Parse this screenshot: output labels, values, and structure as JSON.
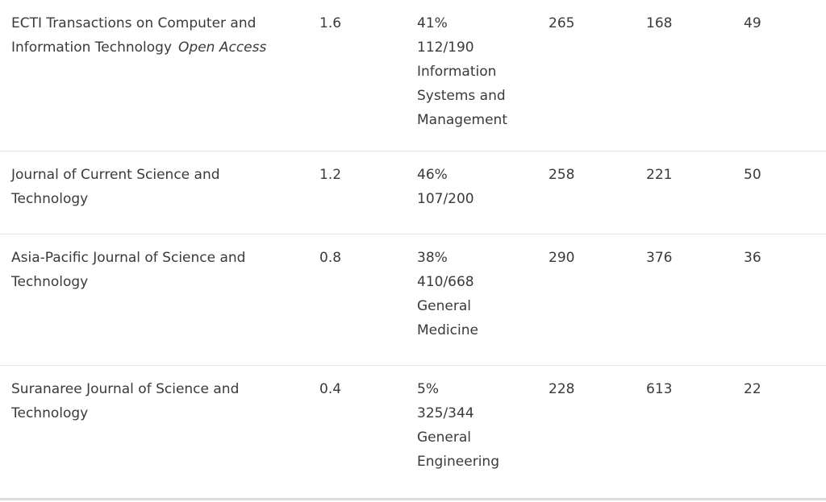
{
  "rows": [
    {
      "title_lines": [
        "ECTI Transactions on Computer and",
        "Information Technology"
      ],
      "badge": "Open Access",
      "citescore": "1.6",
      "percentile": "41%",
      "rank": "112/190",
      "category_lines": [
        "Information",
        "Systems and",
        "Management"
      ],
      "col_a": "265",
      "col_b": "168",
      "col_c": "49"
    },
    {
      "title_lines": [
        "Journal of Current Science and",
        "Technology"
      ],
      "citescore": "1.2",
      "percentile": "46%",
      "rank": "107/200",
      "category_lines": [],
      "col_a": "258",
      "col_b": "221",
      "col_c": "50"
    },
    {
      "title_lines": [
        "Asia-Pacific Journal of Science and",
        "Technology"
      ],
      "citescore": "0.8",
      "percentile": "38%",
      "rank": "410/668",
      "category_lines": [
        "General",
        "Medicine"
      ],
      "col_a": "290",
      "col_b": "376",
      "col_c": "36"
    },
    {
      "title_lines": [
        "Suranaree Journal of Science and",
        "Technology"
      ],
      "citescore": "0.4",
      "percentile": "5%",
      "rank": "325/344",
      "category_lines": [
        "General",
        "Engineering"
      ],
      "col_a": "228",
      "col_b": "613",
      "col_c": "22"
    }
  ]
}
